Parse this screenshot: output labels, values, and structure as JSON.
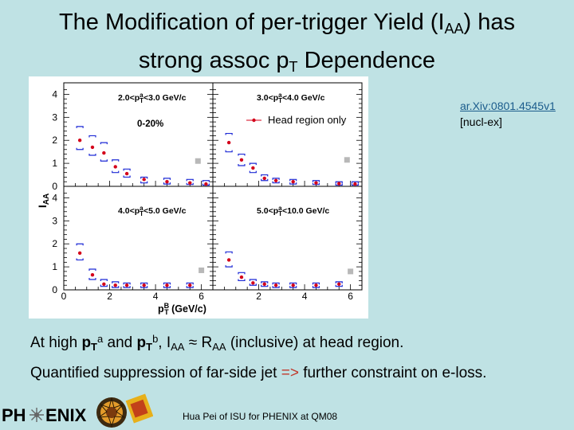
{
  "slide": {
    "title_line1_pre": "The Modification of per-trigger Yield (I",
    "title_line1_sub": "AA",
    "title_line1_post": ") has",
    "title_line2_pre": "strong assoc p",
    "title_line2_sub": "T",
    "title_line2_post": " Dependence"
  },
  "reference": {
    "link": "ar.Xiv:0801.4545v1",
    "category": "[nucl-ex]"
  },
  "body": {
    "l1_a": "At high ",
    "l1_pt": "p",
    "l1_T": "T",
    "l1_a_sup": "a",
    "l1_and": " and ",
    "l1_b_sup": "b",
    "l1_comma": ", I",
    "l1_AA": "AA",
    "l1_approx": " ≈ R",
    "l1_AA2": "AA",
    "l1_rest": " (inclusive) at head region.",
    "l2_a": "Quantified suppression of far-side jet ",
    "l2_arrow": "=>",
    "l2_b": " further constraint on e-loss."
  },
  "footer": {
    "logo_pre": "PH",
    "logo_post": "ENIX",
    "credit": "Hua Pei of ISU for PHENIX at QM08"
  },
  "colors": {
    "background": "#bfe2e4",
    "head_marker": "#d4001a",
    "bracket": "#1f2bd6",
    "square": "#b8b8b8",
    "link": "#1b5c8c"
  },
  "chart_data": {
    "type": "scatter",
    "ylabel": "I_AA",
    "xlabel": "p_T^B (GeV/c)",
    "xlim": [
      0,
      6.5
    ],
    "ylim": [
      0,
      4.5
    ],
    "x_ticks": [
      "0",
      "2",
      "4",
      "6"
    ],
    "y_ticks": [
      "0",
      "1",
      "2",
      "3",
      "4"
    ],
    "panels": [
      {
        "label": "2.0<p_T^a<3.0 GeV/c",
        "centrality": "0-20%",
        "points": [
          {
            "x": 0.7,
            "y": 2.0,
            "lo": 1.6,
            "hi": 2.6
          },
          {
            "x": 1.25,
            "y": 1.7,
            "lo": 1.35,
            "hi": 2.2
          },
          {
            "x": 1.75,
            "y": 1.45,
            "lo": 1.1,
            "hi": 1.9
          },
          {
            "x": 2.25,
            "y": 0.85,
            "lo": 0.6,
            "hi": 1.15
          },
          {
            "x": 2.75,
            "y": 0.55,
            "lo": 0.4,
            "hi": 0.75
          },
          {
            "x": 3.5,
            "y": 0.3,
            "lo": 0.15,
            "hi": 0.4
          },
          {
            "x": 4.5,
            "y": 0.2,
            "lo": 0.1,
            "hi": 0.35
          },
          {
            "x": 5.5,
            "y": 0.15,
            "lo": 0.08,
            "hi": 0.3
          },
          {
            "x": 6.2,
            "y": 0.1,
            "lo": 0.05,
            "hi": 0.25
          }
        ],
        "square": {
          "x": 5.85,
          "y": 1.1
        }
      },
      {
        "label": "3.0<p_T^a<4.0 GeV/c",
        "legend": "Head region only",
        "points": [
          {
            "x": 0.7,
            "y": 1.9,
            "lo": 1.5,
            "hi": 2.3
          },
          {
            "x": 1.25,
            "y": 1.15,
            "lo": 0.9,
            "hi": 1.4
          },
          {
            "x": 1.75,
            "y": 0.8,
            "lo": 0.6,
            "hi": 1.0
          },
          {
            "x": 2.25,
            "y": 0.35,
            "lo": 0.25,
            "hi": 0.5
          },
          {
            "x": 2.75,
            "y": 0.25,
            "lo": 0.15,
            "hi": 0.35
          },
          {
            "x": 3.5,
            "y": 0.2,
            "lo": 0.1,
            "hi": 0.3
          },
          {
            "x": 4.5,
            "y": 0.15,
            "lo": 0.08,
            "hi": 0.25
          },
          {
            "x": 5.5,
            "y": 0.12,
            "lo": 0.05,
            "hi": 0.2
          },
          {
            "x": 6.2,
            "y": 0.1,
            "lo": 0.05,
            "hi": 0.2
          }
        ],
        "square": {
          "x": 5.85,
          "y": 1.15
        }
      },
      {
        "label": "4.0<p_T^a<5.0 GeV/c",
        "points": [
          {
            "x": 0.7,
            "y": 1.6,
            "lo": 1.3,
            "hi": 2.0
          },
          {
            "x": 1.25,
            "y": 0.65,
            "lo": 0.45,
            "hi": 0.9
          },
          {
            "x": 1.75,
            "y": 0.25,
            "lo": 0.15,
            "hi": 0.45
          },
          {
            "x": 2.25,
            "y": 0.2,
            "lo": 0.1,
            "hi": 0.35
          },
          {
            "x": 2.75,
            "y": 0.2,
            "lo": 0.1,
            "hi": 0.3
          },
          {
            "x": 3.5,
            "y": 0.2,
            "lo": 0.1,
            "hi": 0.3
          },
          {
            "x": 4.5,
            "y": 0.2,
            "lo": 0.1,
            "hi": 0.3
          },
          {
            "x": 5.5,
            "y": 0.2,
            "lo": 0.1,
            "hi": 0.3
          }
        ],
        "square": {
          "x": 6.0,
          "y": 0.85
        }
      },
      {
        "label": "5.0<p_T^a<10.0 GeV/c",
        "points": [
          {
            "x": 0.7,
            "y": 1.3,
            "lo": 1.0,
            "hi": 1.65
          },
          {
            "x": 1.25,
            "y": 0.55,
            "lo": 0.4,
            "hi": 0.75
          },
          {
            "x": 1.75,
            "y": 0.3,
            "lo": 0.2,
            "hi": 0.45
          },
          {
            "x": 2.25,
            "y": 0.25,
            "lo": 0.15,
            "hi": 0.35
          },
          {
            "x": 2.75,
            "y": 0.2,
            "lo": 0.1,
            "hi": 0.3
          },
          {
            "x": 3.5,
            "y": 0.2,
            "lo": 0.1,
            "hi": 0.3
          },
          {
            "x": 4.5,
            "y": 0.2,
            "lo": 0.1,
            "hi": 0.3
          },
          {
            "x": 5.5,
            "y": 0.25,
            "lo": 0.15,
            "hi": 0.35
          }
        ],
        "square": {
          "x": 6.0,
          "y": 0.8
        }
      }
    ]
  }
}
